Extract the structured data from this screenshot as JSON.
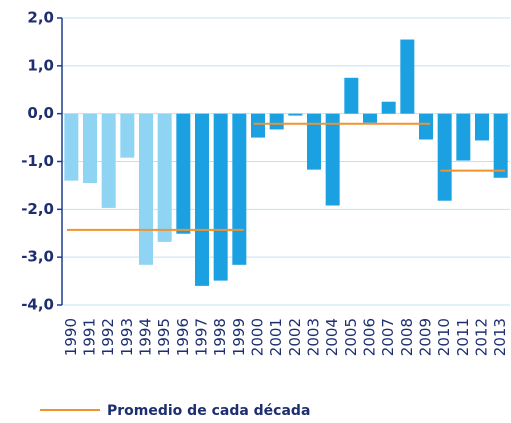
{
  "chart_data": {
    "type": "bar",
    "categories": [
      "1990",
      "1991",
      "1992",
      "1993",
      "1994",
      "1995",
      "1996",
      "1997",
      "1998",
      "1999",
      "2000",
      "2001",
      "2002",
      "2003",
      "2004",
      "2005",
      "2006",
      "2007",
      "2008",
      "2009",
      "2010",
      "2011",
      "2012",
      "2013"
    ],
    "values": [
      -1.4,
      -1.45,
      -1.97,
      -0.92,
      -3.16,
      -2.68,
      -2.51,
      -3.6,
      -3.49,
      -3.16,
      -0.5,
      -0.33,
      -0.04,
      -1.17,
      -1.92,
      0.75,
      -0.19,
      0.25,
      1.55,
      -0.54,
      -1.82,
      -0.98,
      -0.56,
      -1.34
    ],
    "colors": [
      "#8fd4f2",
      "#8fd4f2",
      "#8fd4f2",
      "#8fd4f2",
      "#8fd4f2",
      "#8fd4f2",
      "#1ba0e2",
      "#1ba0e2",
      "#1ba0e2",
      "#1ba0e2",
      "#1ba0e2",
      "#1ba0e2",
      "#1ba0e2",
      "#1ba0e2",
      "#1ba0e2",
      "#1ba0e2",
      "#1ba0e2",
      "#1ba0e2",
      "#1ba0e2",
      "#1ba0e2",
      "#1ba0e2",
      "#1ba0e2",
      "#1ba0e2",
      "#1ba0e2"
    ],
    "ylim": [
      -4,
      2
    ],
    "yticks": [
      {
        "value": 2,
        "label": "2,0"
      },
      {
        "value": 1,
        "label": "1,0"
      },
      {
        "value": 0,
        "label": "0,0"
      },
      {
        "value": -1,
        "label": "-1,0"
      },
      {
        "value": -2,
        "label": "-2,0"
      },
      {
        "value": -3,
        "label": "-3,0"
      },
      {
        "value": -4,
        "label": "-4,0"
      }
    ],
    "grid": true,
    "average_series": {
      "name": "Promedio de cada década",
      "color": "#f0922e",
      "segments": [
        {
          "from": "1990",
          "to": "1999",
          "value": -2.43
        },
        {
          "from": "2000",
          "to": "2009",
          "value": -0.21
        },
        {
          "from": "2010",
          "to": "2013",
          "value": -1.19
        }
      ]
    }
  }
}
